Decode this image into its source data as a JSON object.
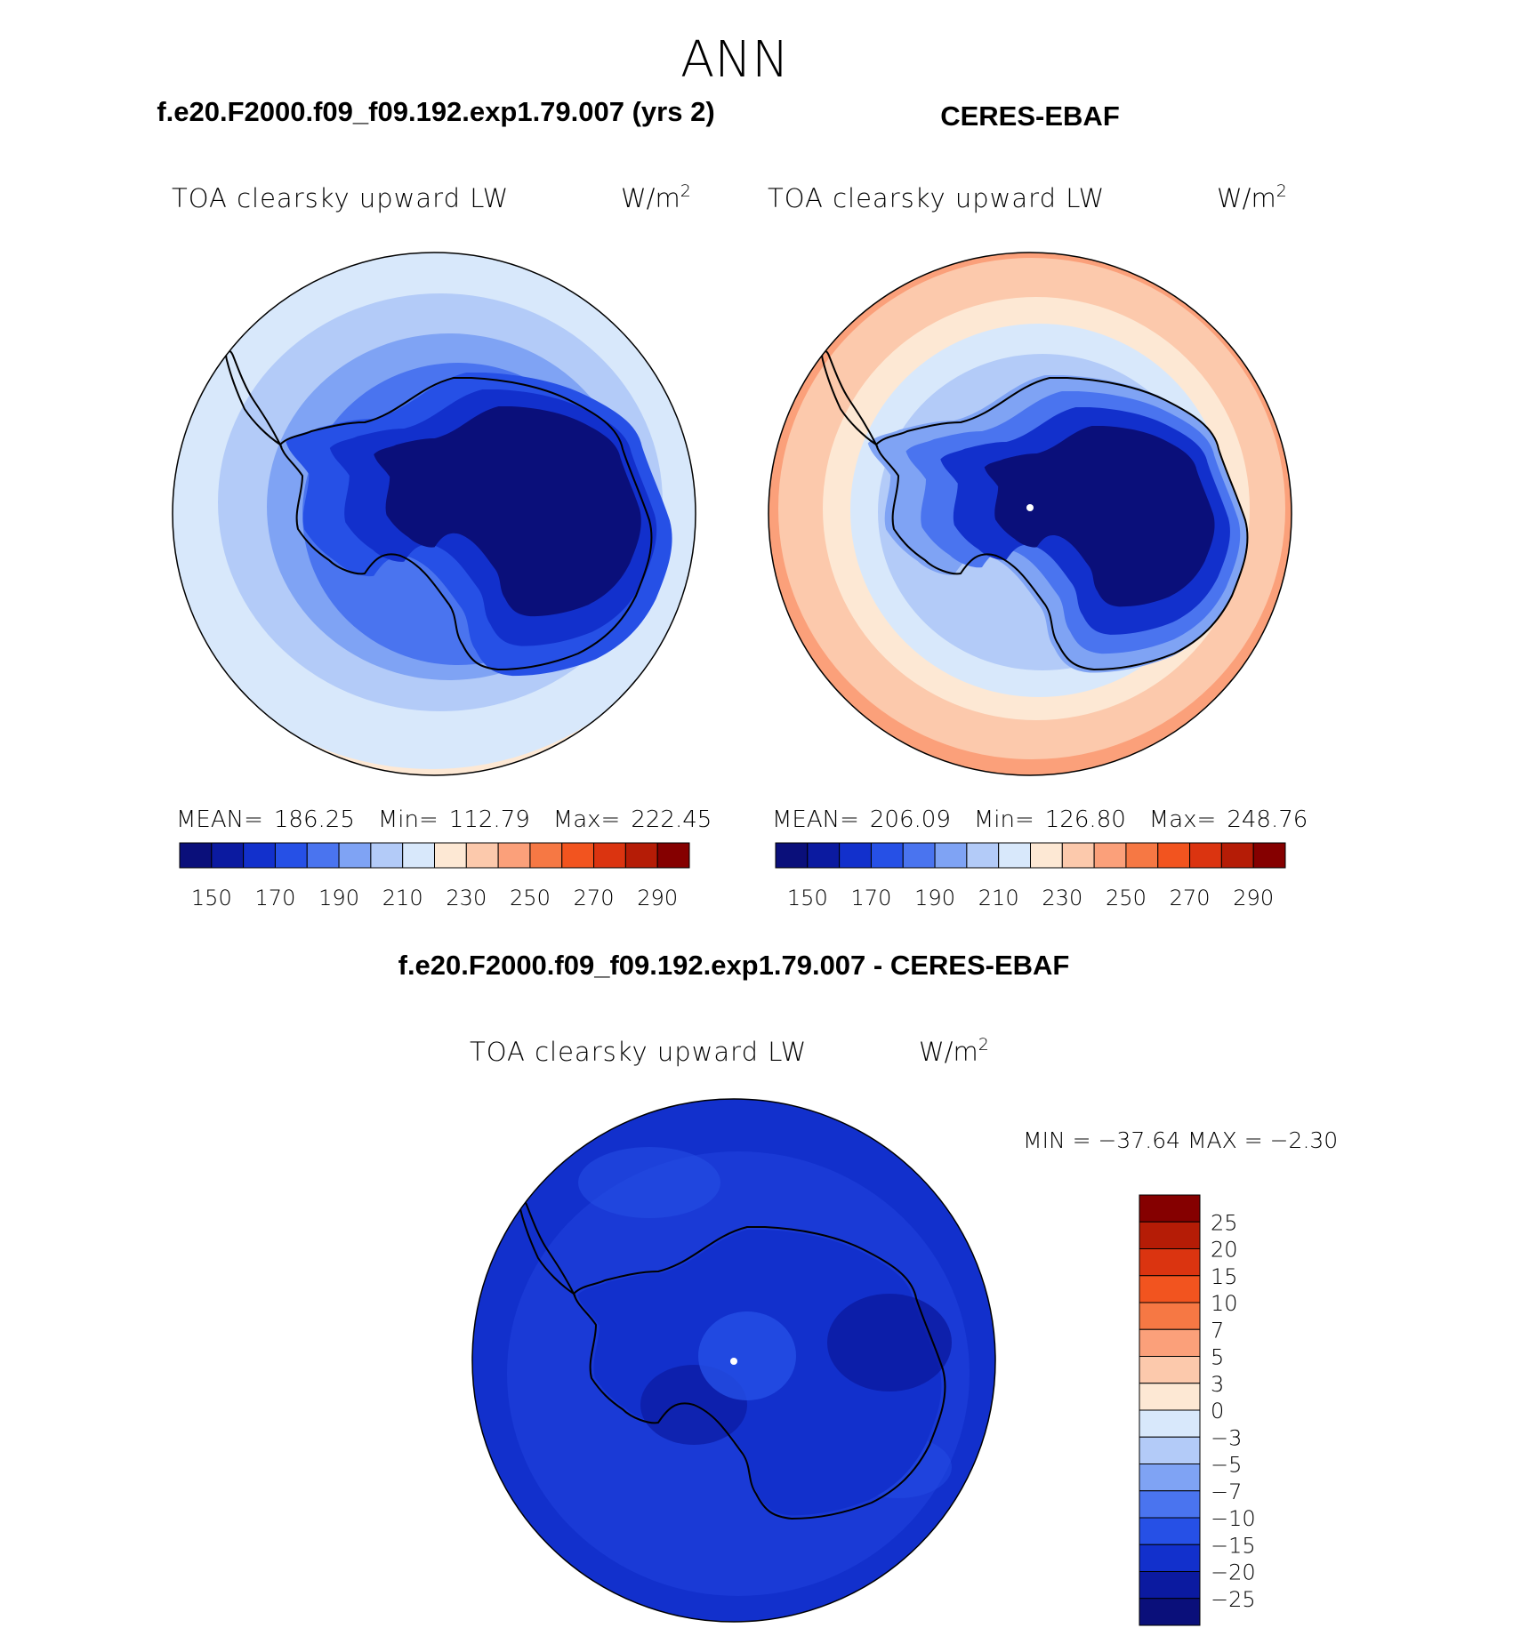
{
  "page_title": "ANN",
  "top_left": {
    "title": "f.e20.F2000.f09_f09.192.exp1.79.007 (yrs 2)",
    "variable": "TOA clearsky upward LW",
    "units_base": "W/m",
    "units_exp": "2",
    "stats": {
      "mean_label": "MEAN=",
      "mean": "186.25",
      "min_label": "Min=",
      "min": "112.79",
      "max_label": "Max=",
      "max": "222.45"
    }
  },
  "top_right": {
    "title": "CERES-EBAF",
    "variable": "TOA clearsky upward LW",
    "units_base": "W/m",
    "units_exp": "2",
    "stats": {
      "mean_label": "MEAN=",
      "mean": "206.09",
      "min_label": "Min=",
      "min": "126.80",
      "max_label": "Max=",
      "max": "248.76"
    }
  },
  "bottom": {
    "title": "f.e20.F2000.f09_f09.192.exp1.79.007 - CERES-EBAF",
    "variable": "TOA clearsky upward LW",
    "units_base": "W/m",
    "units_exp": "2",
    "minmax": "MIN = −37.64 MAX =  −2.30"
  },
  "abs_colorbar": {
    "colors": [
      "#0a0f7a",
      "#0b1aa0",
      "#1230cc",
      "#2650e6",
      "#4a74ef",
      "#7fa3f4",
      "#b3cbf8",
      "#d8e8fb",
      "#fde8d4",
      "#fcc9ac",
      "#fba07a",
      "#f67844",
      "#f2541f",
      "#db3410",
      "#b51c06",
      "#850000"
    ],
    "labels": [
      "150",
      "170",
      "190",
      "210",
      "230",
      "250",
      "270",
      "290"
    ]
  },
  "diff_colorbar": {
    "colors": [
      "#0a0f7a",
      "#0b1aa0",
      "#1230cc",
      "#2650e6",
      "#4a74ef",
      "#7fa3f4",
      "#b3cbf8",
      "#d8e8fb",
      "#fde8d4",
      "#fcc9ac",
      "#fba07a",
      "#f67844",
      "#f2541f",
      "#db3410",
      "#b51c06",
      "#850000"
    ],
    "labels": [
      "25",
      "20",
      "15",
      "10",
      "7",
      "5",
      "3",
      "0",
      "−3",
      "−5",
      "−7",
      "−10",
      "−15",
      "−20",
      "−25"
    ]
  },
  "map_colors": {
    "model": [
      "#d8e8fb",
      "#b3cbf8",
      "#7fa3f4",
      "#4a74ef",
      "#2650e6",
      "#1230cc",
      "#0a0f7a"
    ],
    "obs": [
      "#fba07a",
      "#fcc9ac",
      "#fde8d4",
      "#d8e8fb",
      "#b3cbf8",
      "#7fa3f4",
      "#4a74ef",
      "#1230cc",
      "#0a0f7a"
    ],
    "diff": [
      "#1230cc",
      "#1a3ad6",
      "#0b1aa0"
    ]
  }
}
